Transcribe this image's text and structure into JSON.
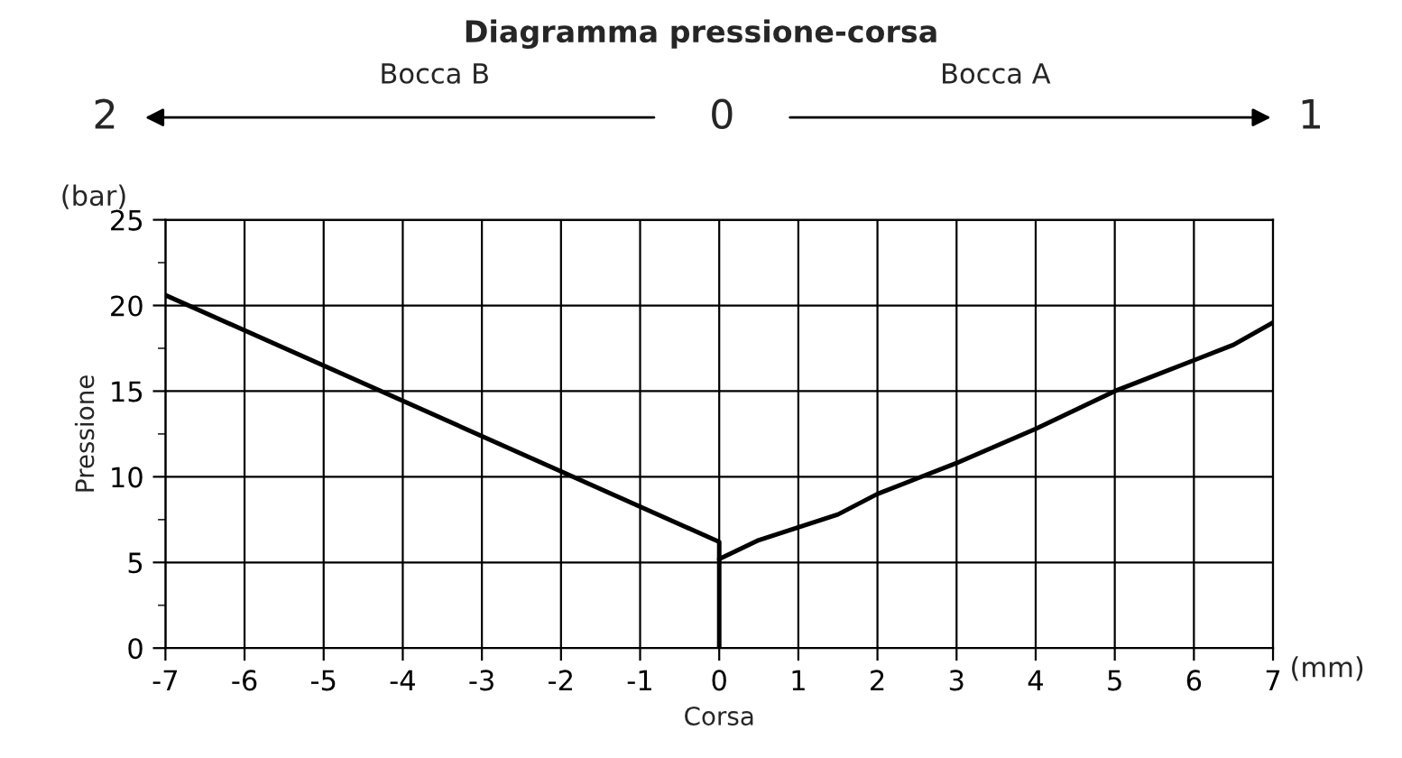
{
  "chart_data": {
    "type": "line",
    "title": "Diagramma pressione-corsa",
    "xlabel": "Corsa",
    "ylabel": "Pressione",
    "annotations": [
      "(bar)",
      "(mm)",
      "2",
      "0",
      "1",
      "Bocca B",
      "Bocca A"
    ],
    "series": [
      {
        "color": "#000000",
        "x": [
          -7,
          0,
          0
        ],
        "values": [
          20.6,
          6.2,
          0
        ]
      },
      {
        "color": "#000000",
        "x": [
          0,
          0.5,
          1.5,
          2,
          3,
          4,
          5,
          6,
          6.5,
          7
        ],
        "values": [
          5.2,
          6.3,
          7.8,
          9,
          10.8,
          12.8,
          15,
          16.8,
          17.7,
          19
        ]
      }
    ],
    "xlim": [
      -7,
      7
    ],
    "xticks": [
      -7,
      -6,
      -5,
      -4,
      -3,
      -2,
      -1,
      0,
      1,
      2,
      3,
      4,
      5,
      6,
      7
    ],
    "ylim": [
      0,
      25
    ],
    "yticks": [
      0,
      5,
      10,
      15,
      20,
      25
    ],
    "grid": true,
    "marker": "none",
    "line_style": "solid"
  }
}
